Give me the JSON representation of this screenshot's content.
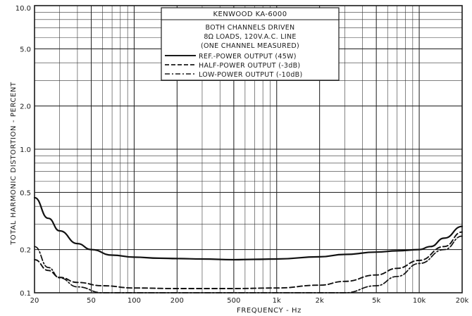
{
  "chart_data": {
    "type": "line",
    "title": "KENWOOD KA-6000",
    "subtitle_lines": [
      "BOTH CHANNELS DRIVEN",
      "8Ω LOADS, 120V.A.C. LINE",
      "(ONE CHANNEL MEASURED)"
    ],
    "xlabel": "FREQUENCY - Hz",
    "ylabel": "TOTAL HARMONIC DISTORTION - PERCENT",
    "x_scale": "log",
    "y_scale": "log",
    "xlim": [
      20,
      20000
    ],
    "ylim": [
      0.1,
      10
    ],
    "grid": true,
    "legend_placement": "top-center",
    "x_ticks": [
      {
        "value": 20,
        "label": "20"
      },
      {
        "value": 50,
        "label": "50"
      },
      {
        "value": 100,
        "label": "100"
      },
      {
        "value": 200,
        "label": "200"
      },
      {
        "value": 500,
        "label": "500"
      },
      {
        "value": 1000,
        "label": "1k"
      },
      {
        "value": 2000,
        "label": "2k"
      },
      {
        "value": 5000,
        "label": "5k"
      },
      {
        "value": 10000,
        "label": "10k"
      },
      {
        "value": 20000,
        "label": "20k"
      }
    ],
    "y_ticks": [
      {
        "value": 10,
        "label": "10.0"
      },
      {
        "value": 5,
        "label": "5.0"
      },
      {
        "value": 2,
        "label": "2.0"
      },
      {
        "value": 1,
        "label": "1.0"
      },
      {
        "value": 0.5,
        "label": "0.5"
      },
      {
        "value": 0.2,
        "label": "0.2"
      },
      {
        "value": 0.1,
        "label": "0.1"
      }
    ],
    "series": [
      {
        "name": "REF.-POWER OUTPUT (45W)",
        "style": "solid",
        "x": [
          20,
          25,
          30,
          40,
          50,
          70,
          100,
          150,
          200,
          300,
          500,
          700,
          1000,
          2000,
          3000,
          5000,
          7000,
          10000,
          12000,
          15000,
          20000
        ],
        "y": [
          0.46,
          0.33,
          0.27,
          0.22,
          0.2,
          0.183,
          0.177,
          0.174,
          0.173,
          0.172,
          0.17,
          0.171,
          0.172,
          0.178,
          0.185,
          0.192,
          0.196,
          0.2,
          0.21,
          0.24,
          0.29
        ]
      },
      {
        "name": "HALF-POWER OUTPUT (-3dB)",
        "style": "dashed",
        "x": [
          20,
          25,
          30,
          40,
          60,
          100,
          200,
          500,
          1000,
          2000,
          3000,
          5000,
          7000,
          10000,
          15000,
          20000
        ],
        "y": [
          0.17,
          0.143,
          0.128,
          0.118,
          0.112,
          0.108,
          0.107,
          0.107,
          0.108,
          0.113,
          0.12,
          0.133,
          0.148,
          0.168,
          0.21,
          0.265
        ]
      },
      {
        "name": "LOW-POWER OUTPUT (-10dB)",
        "style": "dash-dot",
        "x": [
          20,
          25,
          30,
          40,
          60,
          1800,
          3000,
          5000,
          7000,
          10000,
          15000,
          20000
        ],
        "y": [
          0.21,
          0.15,
          0.127,
          0.11,
          0.1,
          0.1,
          0.1,
          0.112,
          0.13,
          0.16,
          0.2,
          0.248
        ]
      }
    ]
  }
}
